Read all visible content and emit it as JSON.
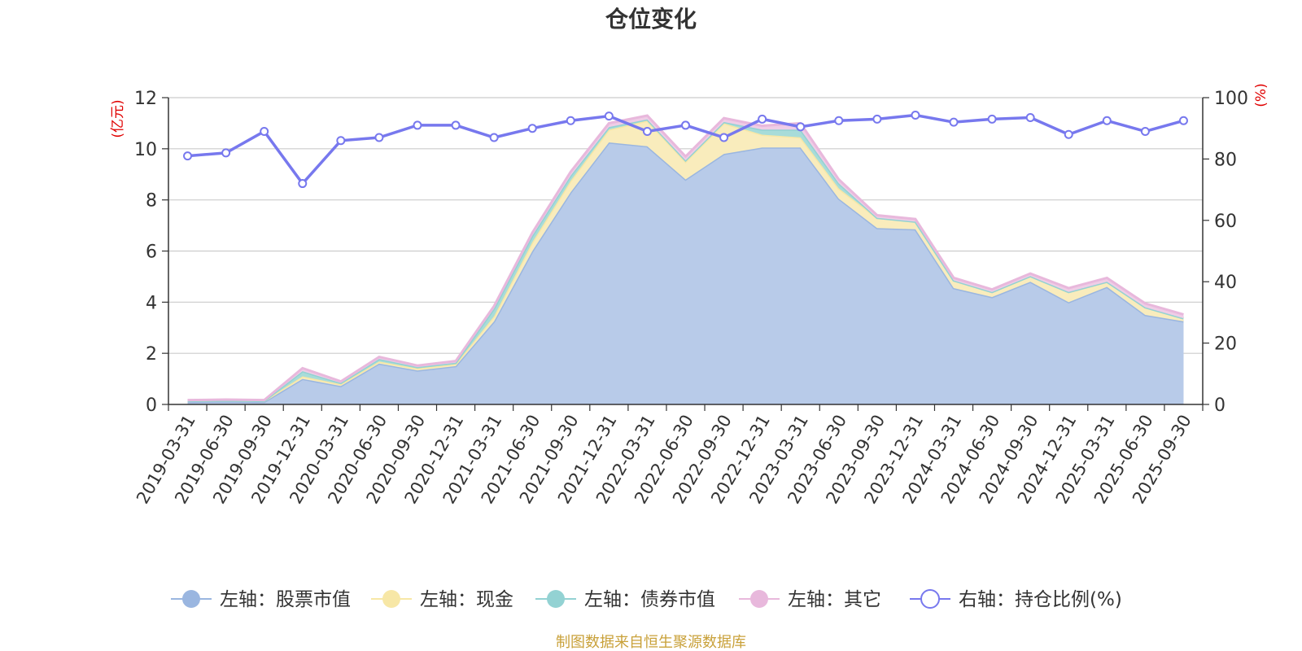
{
  "chart_data": {
    "type": "area",
    "title": "仓位变化",
    "left_axis": {
      "unit": "(亿元)",
      "range": [
        0,
        12
      ],
      "ticks": [
        "0",
        "2",
        "4",
        "6",
        "8",
        "10",
        "12"
      ]
    },
    "right_axis": {
      "unit": "(%)",
      "range": [
        0,
        100
      ],
      "ticks": [
        "0",
        "20",
        "40",
        "60",
        "80",
        "100"
      ]
    },
    "categories": [
      "2019-03-31",
      "2019-06-30",
      "2019-09-30",
      "2019-12-31",
      "2020-03-31",
      "2020-06-30",
      "2020-09-30",
      "2020-12-31",
      "2021-03-31",
      "2021-06-30",
      "2021-09-30",
      "2021-12-31",
      "2022-03-31",
      "2022-06-30",
      "2022-09-30",
      "2022-12-31",
      "2023-03-31",
      "2023-06-30",
      "2023-09-30",
      "2023-12-31",
      "2024-03-31",
      "2024-06-30",
      "2024-09-30",
      "2024-12-31",
      "2025-03-31",
      "2025-06-30",
      "2025-09-30"
    ],
    "series": [
      {
        "name": "左轴：股票市值",
        "axis": "left",
        "stack": true,
        "color": "#9ab6e0",
        "fill": "#b8cbe9",
        "values": [
          0.1,
          0.12,
          0.1,
          1.0,
          0.72,
          1.6,
          1.33,
          1.5,
          3.25,
          6.0,
          8.3,
          10.25,
          10.1,
          8.8,
          9.8,
          10.05,
          10.05,
          8.05,
          6.9,
          6.85,
          4.55,
          4.2,
          4.8,
          4.0,
          4.6,
          3.5,
          3.25
        ]
      },
      {
        "name": "左轴：现金",
        "axis": "left",
        "stack": true,
        "color": "#f7e7a6",
        "fill": "#f9ecbc",
        "values": [
          0.04,
          0.04,
          0.04,
          0.1,
          0.07,
          0.08,
          0.08,
          0.08,
          0.2,
          0.35,
          0.45,
          0.5,
          1.0,
          0.7,
          1.2,
          0.5,
          0.4,
          0.4,
          0.4,
          0.3,
          0.3,
          0.2,
          0.22,
          0.4,
          0.2,
          0.3,
          0.12
        ]
      },
      {
        "name": "左轴：债券市值",
        "axis": "left",
        "stack": true,
        "color": "#93d2d3",
        "fill": "#a8dcd9",
        "values": [
          0.0,
          0.0,
          0.0,
          0.2,
          0.05,
          0.1,
          0.05,
          0.05,
          0.3,
          0.25,
          0.2,
          0.1,
          0.05,
          0.05,
          0.05,
          0.2,
          0.3,
          0.2,
          0.0,
          0.0,
          0.0,
          0.0,
          0.0,
          0.0,
          0.0,
          0.0,
          0.0
        ]
      },
      {
        "name": "左轴：其它",
        "axis": "left",
        "stack": true,
        "color": "#e8b8dc",
        "fill": "#efcde6",
        "values": [
          0.03,
          0.03,
          0.03,
          0.12,
          0.06,
          0.08,
          0.06,
          0.07,
          0.1,
          0.12,
          0.15,
          0.15,
          0.15,
          0.15,
          0.15,
          0.15,
          0.25,
          0.15,
          0.1,
          0.1,
          0.1,
          0.1,
          0.1,
          0.15,
          0.15,
          0.15,
          0.15
        ]
      },
      {
        "name": "右轴：持仓比例(%)",
        "axis": "right",
        "stack": false,
        "color": "#7778ee",
        "values": [
          81,
          82,
          89,
          72,
          86,
          87,
          91,
          91,
          87,
          90,
          92.5,
          94,
          89,
          91,
          87,
          93,
          90.5,
          92.5,
          93,
          94.3,
          92,
          93,
          93.5,
          88,
          92.5,
          89,
          92.5
        ]
      }
    ],
    "grid": true,
    "legend_position": "bottom",
    "source_note": "制图数据来自恒生聚源数据库"
  }
}
